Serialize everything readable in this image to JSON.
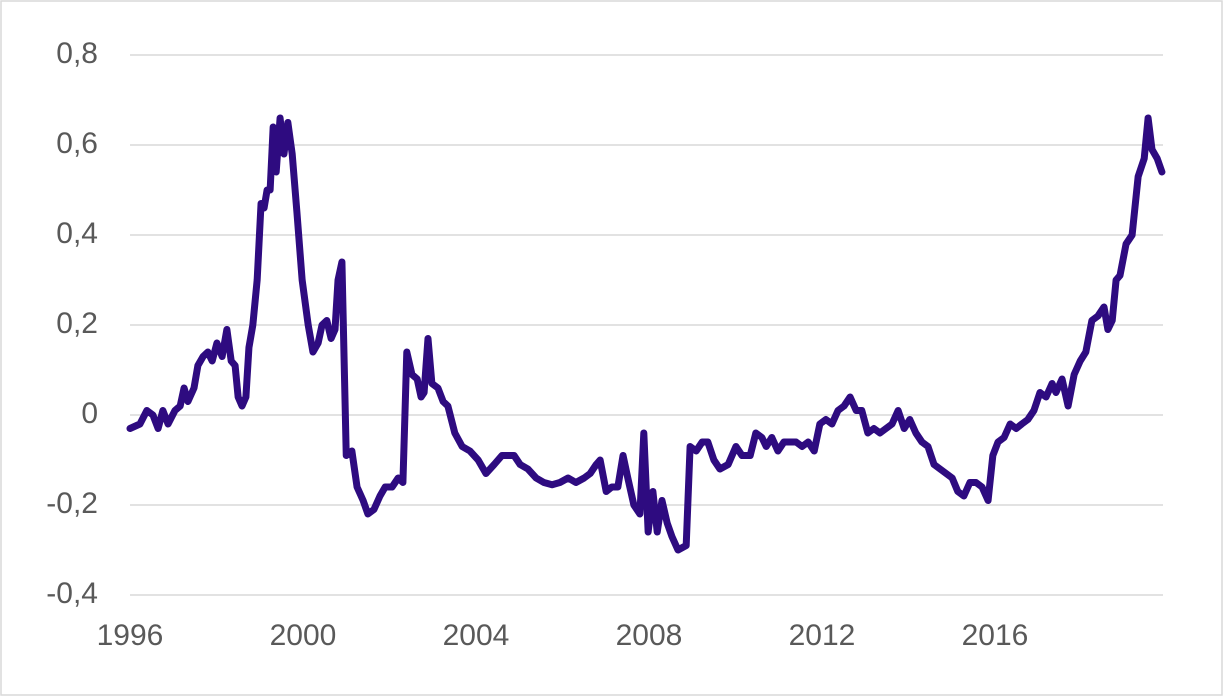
{
  "chart_data": {
    "type": "line",
    "x": [
      1996.0,
      1996.23,
      1996.39,
      1996.53,
      1996.65,
      1996.76,
      1996.88,
      1997.04,
      1997.16,
      1997.25,
      1997.34,
      1997.48,
      1997.57,
      1997.69,
      1997.8,
      1997.9,
      1998.01,
      1998.13,
      1998.24,
      1998.34,
      1998.43,
      1998.5,
      1998.59,
      1998.68,
      1998.75,
      1998.84,
      1998.94,
      1999.03,
      1999.1,
      1999.17,
      1999.24,
      1999.31,
      1999.38,
      1999.47,
      1999.56,
      1999.65,
      1999.75,
      1999.86,
      1999.98,
      2000.12,
      2000.23,
      2000.35,
      2000.44,
      2000.55,
      2000.65,
      2000.74,
      2000.81,
      2000.9,
      2001.0,
      2001.13,
      2001.25,
      2001.39,
      2001.5,
      2001.64,
      2001.78,
      2001.9,
      2002.06,
      2002.2,
      2002.31,
      2002.4,
      2002.52,
      2002.64,
      2002.73,
      2002.8,
      2002.89,
      2002.98,
      2003.12,
      2003.24,
      2003.35,
      2003.51,
      2003.68,
      2003.86,
      2004.05,
      2004.23,
      2004.42,
      2004.6,
      2004.74,
      2004.88,
      2005.02,
      2005.2,
      2005.39,
      2005.57,
      2005.76,
      2005.94,
      2006.13,
      2006.31,
      2006.5,
      2006.64,
      2006.78,
      2006.87,
      2007.01,
      2007.14,
      2007.28,
      2007.4,
      2007.51,
      2007.65,
      2007.79,
      2007.88,
      2007.98,
      2008.09,
      2008.19,
      2008.3,
      2008.42,
      2008.53,
      2008.67,
      2008.86,
      2008.95,
      2009.09,
      2009.23,
      2009.36,
      2009.5,
      2009.64,
      2009.83,
      2010.01,
      2010.15,
      2010.34,
      2010.47,
      2010.61,
      2010.71,
      2010.84,
      2010.98,
      2011.12,
      2011.26,
      2011.4,
      2011.54,
      2011.68,
      2011.82,
      2011.95,
      2012.09,
      2012.23,
      2012.37,
      2012.51,
      2012.65,
      2012.79,
      2012.92,
      2013.06,
      2013.2,
      2013.34,
      2013.48,
      2013.62,
      2013.76,
      2013.9,
      2014.03,
      2014.17,
      2014.31,
      2014.45,
      2014.59,
      2014.73,
      2014.87,
      2015.01,
      2015.14,
      2015.28,
      2015.42,
      2015.56,
      2015.7,
      2015.84,
      2015.95,
      2016.07,
      2016.21,
      2016.35,
      2016.49,
      2016.62,
      2016.76,
      2016.9,
      2017.04,
      2017.18,
      2017.32,
      2017.41,
      2017.55,
      2017.69,
      2017.83,
      2017.97,
      2018.1,
      2018.24,
      2018.38,
      2018.52,
      2018.61,
      2018.71,
      2018.8,
      2018.89,
      2019.03,
      2019.17,
      2019.31,
      2019.45,
      2019.54,
      2019.63,
      2019.75,
      2019.86
    ],
    "series": [
      {
        "color": "#2e0b80",
        "values": [
          -0.03,
          -0.02,
          0.01,
          0.0,
          -0.03,
          0.01,
          -0.02,
          0.01,
          0.02,
          0.06,
          0.03,
          0.06,
          0.11,
          0.13,
          0.14,
          0.12,
          0.16,
          0.13,
          0.19,
          0.12,
          0.11,
          0.04,
          0.02,
          0.04,
          0.15,
          0.2,
          0.3,
          0.47,
          0.46,
          0.5,
          0.5,
          0.64,
          0.54,
          0.66,
          0.58,
          0.65,
          0.58,
          0.45,
          0.3,
          0.2,
          0.14,
          0.16,
          0.2,
          0.21,
          0.17,
          0.19,
          0.3,
          0.34,
          -0.09,
          -0.08,
          -0.16,
          -0.19,
          -0.22,
          -0.21,
          -0.18,
          -0.16,
          -0.16,
          -0.14,
          -0.15,
          0.14,
          0.09,
          0.08,
          0.04,
          0.05,
          0.17,
          0.07,
          0.06,
          0.03,
          0.02,
          -0.04,
          -0.07,
          -0.08,
          -0.1,
          -0.13,
          -0.11,
          -0.09,
          -0.09,
          -0.09,
          -0.11,
          -0.12,
          -0.14,
          -0.15,
          -0.155,
          -0.15,
          -0.14,
          -0.15,
          -0.14,
          -0.13,
          -0.11,
          -0.1,
          -0.17,
          -0.16,
          -0.16,
          -0.09,
          -0.14,
          -0.2,
          -0.22,
          -0.04,
          -0.26,
          -0.17,
          -0.26,
          -0.19,
          -0.24,
          -0.27,
          -0.3,
          -0.29,
          -0.07,
          -0.08,
          -0.06,
          -0.06,
          -0.1,
          -0.12,
          -0.11,
          -0.07,
          -0.09,
          -0.09,
          -0.04,
          -0.05,
          -0.07,
          -0.05,
          -0.08,
          -0.06,
          -0.06,
          -0.06,
          -0.07,
          -0.06,
          -0.08,
          -0.02,
          -0.01,
          -0.02,
          0.01,
          0.02,
          0.04,
          0.01,
          0.01,
          -0.04,
          -0.03,
          -0.04,
          -0.03,
          -0.02,
          0.01,
          -0.03,
          -0.01,
          -0.04,
          -0.06,
          -0.07,
          -0.11,
          -0.12,
          -0.13,
          -0.14,
          -0.17,
          -0.18,
          -0.15,
          -0.15,
          -0.16,
          -0.19,
          -0.09,
          -0.06,
          -0.05,
          -0.02,
          -0.03,
          -0.02,
          -0.01,
          0.01,
          0.05,
          0.04,
          0.07,
          0.05,
          0.08,
          0.02,
          0.09,
          0.12,
          0.14,
          0.21,
          0.22,
          0.24,
          0.19,
          0.21,
          0.3,
          0.31,
          0.38,
          0.4,
          0.53,
          0.57,
          0.66,
          0.59,
          0.57,
          0.54
        ]
      }
    ],
    "xlim": [
      1996,
      2020
    ],
    "xticks": [
      1996,
      2000,
      2004,
      2008,
      2012,
      2016
    ],
    "ylim": [
      -0.4,
      0.8
    ],
    "yticks": [
      {
        "value": -0.4,
        "label": "-0,4"
      },
      {
        "value": -0.2,
        "label": "-0,2"
      },
      0,
      {
        "value": 0.2,
        "label": "0,2"
      },
      {
        "value": 0.4,
        "label": "0,4"
      },
      {
        "value": 0.6,
        "label": "0,6"
      },
      {
        "value": 0.8,
        "label": "0,8"
      }
    ],
    "grid": true
  }
}
